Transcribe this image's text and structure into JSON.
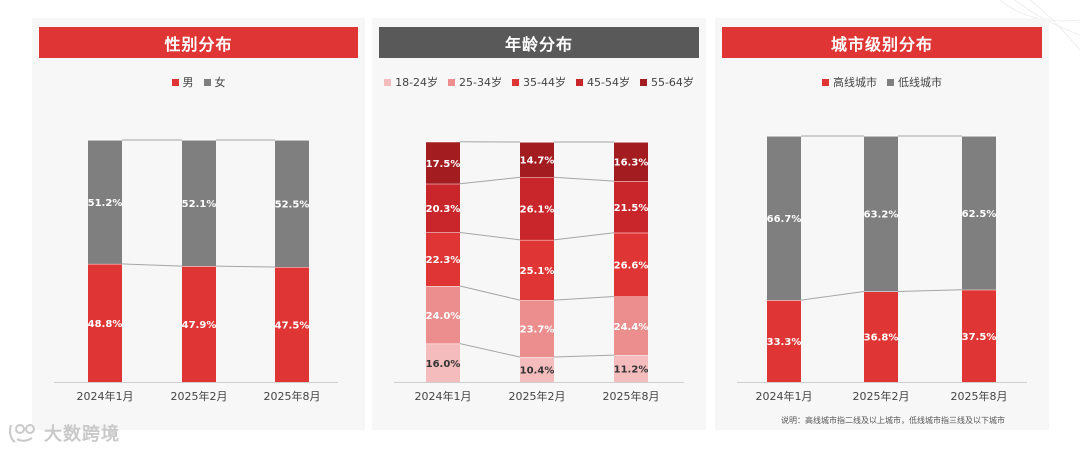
{
  "colors": {
    "red": "#e03535",
    "gray": "#7f7f7f",
    "dark_banner": "#595959",
    "age": [
      "#f4bcbc",
      "#ec8e8e",
      "#e03535",
      "#c8262a",
      "#a31c20"
    ]
  },
  "watermark": {
    "text": "大数跨境"
  },
  "chart_data": [
    {
      "type": "bar",
      "stacked": true,
      "title": "性别分布",
      "categories": [
        "2024年1月",
        "2025年2月",
        "2025年8月"
      ],
      "series": [
        {
          "name": "男",
          "values": [
            48.8,
            47.9,
            47.5
          ],
          "labels": [
            "48.8%",
            "47.9%",
            "47.5%"
          ],
          "color": "#e03535"
        },
        {
          "name": "女",
          "values": [
            51.2,
            52.1,
            52.5
          ],
          "labels": [
            "51.2%",
            "52.1%",
            "52.5%"
          ],
          "color": "#7f7f7f"
        }
      ],
      "ylim": [
        0,
        100
      ],
      "grid": false,
      "legend_position": "top",
      "banner_color": "#e03535"
    },
    {
      "type": "bar",
      "stacked": true,
      "title": "年龄分布",
      "categories": [
        "2024年1月",
        "2025年2月",
        "2025年8月"
      ],
      "series": [
        {
          "name": "18-24岁",
          "values": [
            16.0,
            10.4,
            11.2
          ],
          "labels": [
            "16.0%",
            "10.4%",
            "11.2%"
          ],
          "color": "#f4bcbc"
        },
        {
          "name": "25-34岁",
          "values": [
            24.0,
            23.7,
            24.4
          ],
          "labels": [
            "24.0%",
            "23.7%",
            "24.4%"
          ],
          "color": "#ec8e8e"
        },
        {
          "name": "35-44岁",
          "values": [
            22.3,
            25.1,
            26.6
          ],
          "labels": [
            "22.3%",
            "25.1%",
            "26.6%"
          ],
          "color": "#e03535"
        },
        {
          "name": "45-54岁",
          "values": [
            20.3,
            26.1,
            21.5
          ],
          "labels": [
            "20.3%",
            "26.1%",
            "21.5%"
          ],
          "color": "#c8262a"
        },
        {
          "name": "55-64岁",
          "values": [
            17.5,
            14.7,
            16.3
          ],
          "labels": [
            "17.5%",
            "14.7%",
            "16.3%"
          ],
          "color": "#a31c20"
        }
      ],
      "ylim": [
        0,
        100
      ],
      "grid": false,
      "legend_position": "top",
      "banner_color": "#595959"
    },
    {
      "type": "bar",
      "stacked": true,
      "title": "城市级别分布",
      "categories": [
        "2024年1月",
        "2025年2月",
        "2025年8月"
      ],
      "series": [
        {
          "name": "高线城市",
          "values": [
            33.3,
            36.8,
            37.5
          ],
          "labels": [
            "33.3%",
            "36.8%",
            "37.5%"
          ],
          "color": "#e03535"
        },
        {
          "name": "低线城市",
          "values": [
            66.7,
            63.2,
            62.5
          ],
          "labels": [
            "66.7%",
            "63.2%",
            "62.5%"
          ],
          "color": "#7f7f7f"
        }
      ],
      "ylim": [
        0,
        100
      ],
      "grid": false,
      "legend_position": "top",
      "banner_color": "#e03535",
      "note": "说明：高线城市指二线及以上城市，低线城市指三线及以下城市"
    }
  ]
}
